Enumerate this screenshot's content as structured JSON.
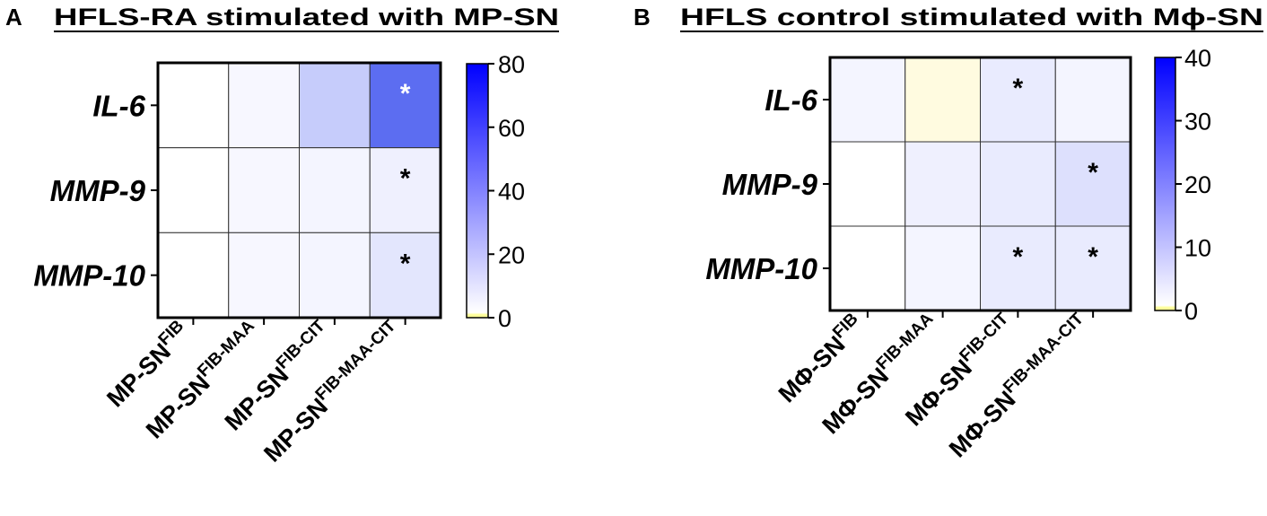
{
  "chart_data": [
    {
      "type": "heatmap",
      "panel_label": "A",
      "title": "HFLS-RA stimulated with MP-SN",
      "rows": [
        "IL-6",
        "MMP-9",
        "MMP-10"
      ],
      "columns": [
        {
          "base": "MP-SN",
          "sup": "FIB"
        },
        {
          "base": "MP-SN",
          "sup": "FIB-MAA"
        },
        {
          "base": "MP-SN",
          "sup": "FIB-CIT"
        },
        {
          "base": "MP-SN",
          "sup": "FIB-MAA-CIT"
        }
      ],
      "values": [
        [
          0,
          1,
          18,
          55
        ],
        [
          0,
          1,
          2,
          4
        ],
        [
          0,
          1,
          2,
          8
        ]
      ],
      "significance": [
        [
          "",
          "",
          "",
          "*"
        ],
        [
          "",
          "",
          "",
          "*"
        ],
        [
          "",
          "",
          "",
          "*"
        ]
      ],
      "colorbar": {
        "min": 0,
        "max": 80,
        "ticks": [
          0,
          20,
          40,
          60,
          80
        ],
        "low_color": "#ffff99",
        "high_color": "#0000ff"
      }
    },
    {
      "type": "heatmap",
      "panel_label": "B",
      "title": "HFLS control  stimulated with Mϕ-SN",
      "rows": [
        "IL-6",
        "MMP-9",
        "MMP-10"
      ],
      "columns": [
        {
          "base": "MΦ-SN",
          "sup": "FIB"
        },
        {
          "base": "MΦ-SN",
          "sup": "FIB-MAA"
        },
        {
          "base": "MΦ-SN",
          "sup": "FIB-CIT"
        },
        {
          "base": "MΦ-SN",
          "sup": "FIB-MAA-CIT"
        }
      ],
      "values": [
        [
          1,
          -1,
          3,
          1
        ],
        [
          0,
          2,
          3,
          5
        ],
        [
          0,
          1,
          3,
          3
        ]
      ],
      "significance": [
        [
          "",
          "",
          "*",
          ""
        ],
        [
          "",
          "",
          "",
          "*"
        ],
        [
          "",
          "",
          "*",
          "*"
        ]
      ],
      "colorbar": {
        "min": 0,
        "max": 40,
        "ticks": [
          0,
          10,
          20,
          30,
          40
        ],
        "low_color": "#ffff99",
        "high_color": "#0000ff"
      }
    }
  ]
}
